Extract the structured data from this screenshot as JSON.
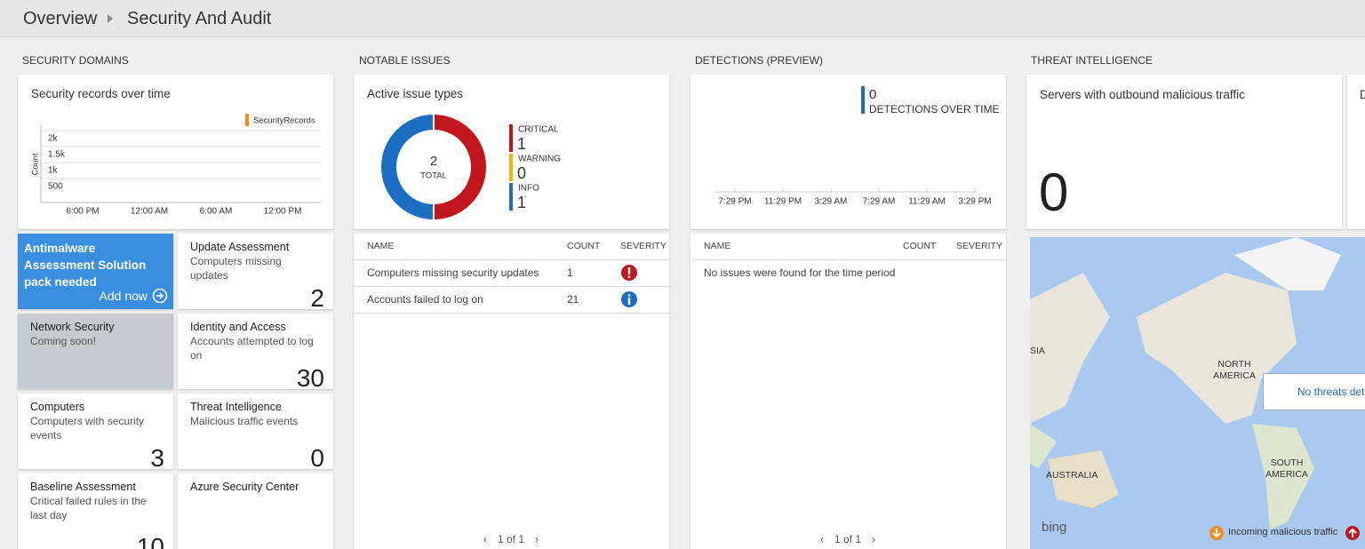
{
  "header": {
    "crumbs": [
      "Overview",
      "Security And Audit"
    ]
  },
  "security_domains": {
    "heading": "SECURITY DOMAINS",
    "records_chart": {
      "type": "line",
      "title": "Security records over time",
      "y_label": "Count",
      "series": [
        {
          "name": "SecurityRecords",
          "color": "#f28c1e"
        }
      ],
      "categories": [
        "6:00 PM",
        "12:00 AM",
        "6:00 AM",
        "12:00 PM"
      ],
      "ylim": [
        0,
        2250
      ],
      "yticks": [
        {
          "value": 2000,
          "label": "2k"
        },
        {
          "value": 1500,
          "label": "1.5k"
        },
        {
          "value": 1000,
          "label": "1k"
        },
        500
      ],
      "grid": true
    },
    "tiles": [
      {
        "title": "Antimalware Assessment Solution pack needed",
        "action": "Add now"
      },
      {
        "title": "Update Assessment",
        "subtitle": "Computers missing updates",
        "count": 2
      },
      {
        "title": "Network Security",
        "subtitle": "Coming soon!"
      },
      {
        "title": "Identity and Access",
        "subtitle": "Accounts attempted to log on",
        "count": 30
      },
      {
        "title": "Computers",
        "subtitle": "Computers with security events",
        "count": 3
      },
      {
        "title": "Threat Intelligence",
        "subtitle": "Malicious traffic events",
        "count": 0
      },
      {
        "title": "Baseline Assessment",
        "subtitle": "Critical failed rules in the last day",
        "count": 10
      },
      {
        "title": "Azure Security Center"
      }
    ]
  },
  "notable_issues": {
    "heading": "NOTABLE ISSUES",
    "donut": {
      "type": "pie",
      "title": "Active issue types",
      "total": 2,
      "total_label": "TOTAL",
      "categories": [
        "CRITICAL",
        "WARNING",
        "INFO"
      ],
      "values": [
        1,
        0,
        1
      ],
      "colors": [
        "#c0161d",
        "#f2b705",
        "#1b6ec2"
      ]
    },
    "table": {
      "columns": [
        "NAME",
        "COUNT",
        "SEVERITY"
      ],
      "rows": [
        [
          "Computers missing security updates",
          1
        ],
        [
          "Accounts failed to log on",
          21
        ]
      ]
    },
    "pager": "1 of 1"
  },
  "detections": {
    "heading": "DETECTIONS (PREVIEW)",
    "value": 0,
    "label": "DETECTIONS OVER TIME",
    "categories": [
      "7:29 PM",
      "11:29 PM",
      "3:29 AM",
      "7:29 AM",
      "11:29 AM",
      "3:29 PM"
    ],
    "table": {
      "columns": [
        "NAME",
        "COUNT",
        "SEVERITY"
      ],
      "empty": "No issues were found for the time period"
    },
    "pager": "1 of 1"
  },
  "threat_intelligence": {
    "heading": "THREAT INTELLIGENCE",
    "cards": [
      "Servers with outbound malicious traffic",
      "D"
    ],
    "count": 0,
    "map": {
      "labels": [
        "SIA",
        "NORTH AMERICA",
        "AUSTRALIA",
        "SOUTH AMERICA"
      ],
      "notice": "No threats det",
      "brand": "bing",
      "legend": "Incoming malicious traffic"
    }
  }
}
